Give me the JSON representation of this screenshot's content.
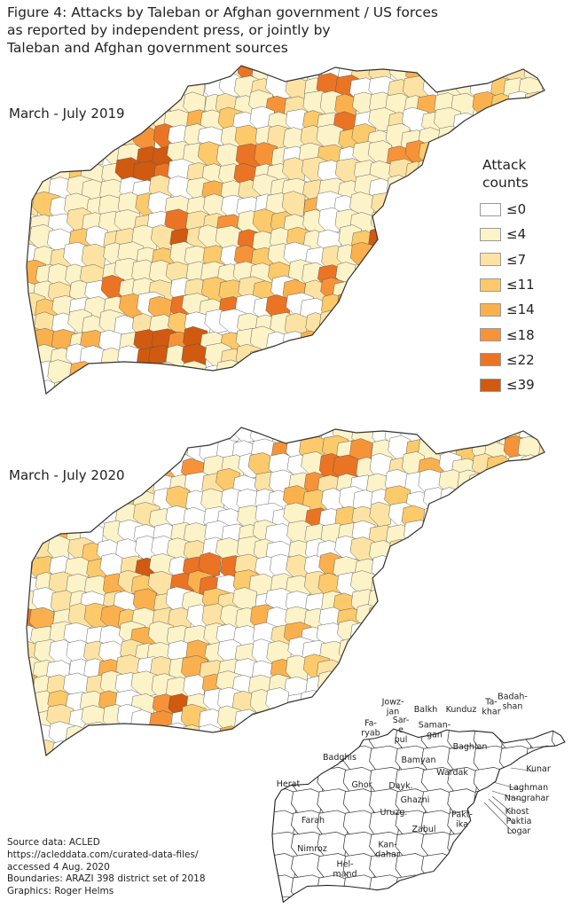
{
  "title_lines": [
    "Figure 4: Attacks by Taleban or Afghan government / US forces",
    "as reported by independent press, or jointly by",
    "Taleban and Afghan government sources"
  ],
  "maps": [
    {
      "label": "March - July 2019"
    },
    {
      "label": "March - July 2020"
    }
  ],
  "legend": {
    "title_lines": [
      "Attack",
      "counts"
    ],
    "items": [
      {
        "label": "≤0",
        "color": "#ffffff"
      },
      {
        "label": "≤4",
        "color": "#fdf3c8"
      },
      {
        "label": "≤7",
        "color": "#fde3a3"
      },
      {
        "label": "≤11",
        "color": "#fcc96b"
      },
      {
        "label": "≤14",
        "color": "#fbb04e"
      },
      {
        "label": "≤18",
        "color": "#f69338"
      },
      {
        "label": "≤22",
        "color": "#ea7424"
      },
      {
        "label": "≤39",
        "color": "#d05a10"
      }
    ]
  },
  "provinces": [
    {
      "name": "Jowz-\njan"
    },
    {
      "name": "Balkh"
    },
    {
      "name": "Kunduz"
    },
    {
      "name": "Ta-\nkhar"
    },
    {
      "name": "Badah-\nshan"
    },
    {
      "name": "Fa-\nryab"
    },
    {
      "name": "Sar-\ne\npul"
    },
    {
      "name": "Saman-\ngan"
    },
    {
      "name": "Baghlan"
    },
    {
      "name": "Badghis"
    },
    {
      "name": "Bamyan"
    },
    {
      "name": "Herat"
    },
    {
      "name": "Ghor"
    },
    {
      "name": "Dayk."
    },
    {
      "name": "Wardak"
    },
    {
      "name": "Kunar"
    },
    {
      "name": "Laghman"
    },
    {
      "name": "Nangrahar"
    },
    {
      "name": "Ghazni"
    },
    {
      "name": "Khost"
    },
    {
      "name": "Paktia"
    },
    {
      "name": "Logar"
    },
    {
      "name": "Farah"
    },
    {
      "name": "Uruzg."
    },
    {
      "name": "Zabul"
    },
    {
      "name": "Pakt-\nika"
    },
    {
      "name": "Nimroz"
    },
    {
      "name": "Kan-\ndahar"
    },
    {
      "name": "Hel-\nmand"
    }
  ],
  "source_lines": [
    "Source data: ACLED",
    "https://acleddata.com/curated-data-files/",
    "accessed 4 Aug. 2020",
    "Boundaries: ARAZI 398 district set of 2018",
    "Graphics: Roger Helms"
  ]
}
